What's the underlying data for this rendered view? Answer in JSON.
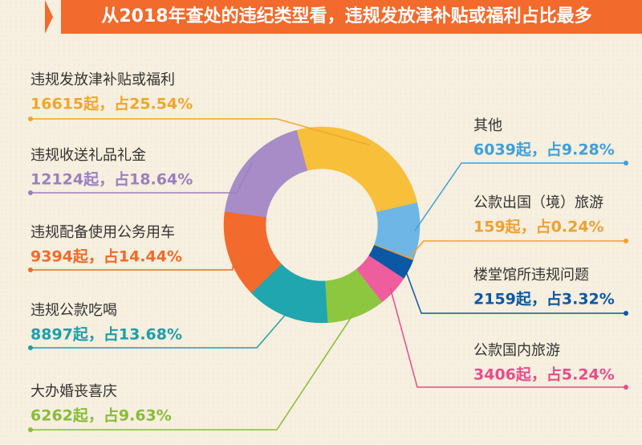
{
  "chart_data": {
    "type": "pie",
    "donut": true,
    "title": "从2018年查处的违纪类型看，违规发放津补贴或福利占比最多",
    "categories": [
      "违规发放津补贴或福利",
      "其他",
      "公款出国（境）旅游",
      "楼堂馆所违规问题",
      "公款国内旅游",
      "大办婚丧喜庆",
      "违规公款吃喝",
      "违规配备使用公务用车",
      "违规收送礼品礼金"
    ],
    "values": [
      16615,
      6039,
      159,
      2159,
      3406,
      6262,
      8897,
      9394,
      12124
    ],
    "value_labels": [
      "16615起，占25.54%",
      "6039起，占9.28%",
      "159起，占0.24%",
      "2159起，占3.32%",
      "3406起，占5.24%",
      "6262起，占9.63%",
      "8897起，占13.68%",
      "9394起，占14.44%",
      "12124起，占18.64%"
    ],
    "colors": [
      "#f8bf3a",
      "#6db6e6",
      "#f39a2b",
      "#0b58a5",
      "#ee5d9d",
      "#8dc63f",
      "#20a6ae",
      "#f26a2c",
      "#a88cc8"
    ],
    "label_colors": [
      "#f0a62c",
      "#3f9fdb",
      "#f0a030",
      "#0b58a5",
      "#e84c8c",
      "#86bd3a",
      "#1c9fac",
      "#ef6a2c",
      "#9b7fc0"
    ]
  }
}
